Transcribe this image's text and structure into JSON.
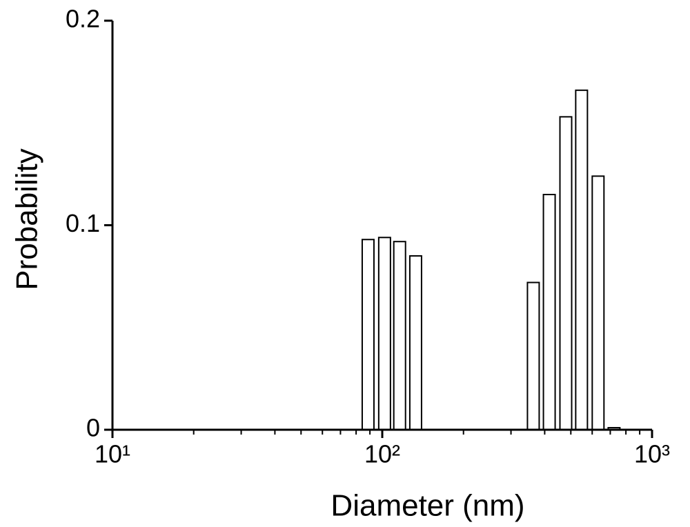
{
  "chart_data": {
    "type": "bar",
    "x_label": "Diameter (nm)",
    "y_label": "Probability",
    "x": [
      88.6,
      102,
      116,
      133,
      363,
      416,
      479,
      548,
      631,
      723
    ],
    "values": [
      0.093,
      0.094,
      0.092,
      0.085,
      0.072,
      0.115,
      0.153,
      0.166,
      0.124,
      0.001
    ],
    "color": "#ffffff",
    "edge_color": "#000000",
    "x_scale": "log",
    "xlim": [
      10,
      1000
    ],
    "xticks": [
      {
        "value": 10,
        "label": "10¹"
      },
      {
        "value": 100,
        "label": "10²"
      },
      {
        "value": 1000,
        "label": "10³"
      }
    ],
    "xminorticks": [
      20,
      30,
      40,
      50,
      60,
      70,
      80,
      90,
      200,
      300,
      400,
      500,
      600,
      700,
      800,
      900
    ],
    "ylim": [
      0,
      0.2
    ],
    "yticks": [
      0,
      0.1,
      0.2
    ],
    "grid": false
  }
}
